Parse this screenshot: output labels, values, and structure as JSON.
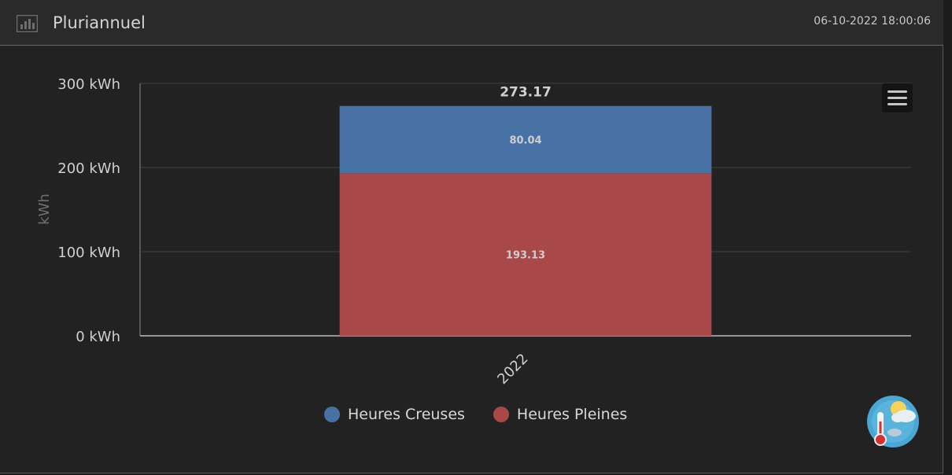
{
  "header": {
    "title": "Pluriannuel",
    "timestamp": "06-10-2022 18:00:06",
    "icon": "bar-chart-icon"
  },
  "menu": {
    "icon": "hamburger-menu-icon"
  },
  "weather_widget": {
    "icon": "weather-thermometer-icon"
  },
  "colors": {
    "background": "#222222",
    "header": "#2a2a2a",
    "heures_creuses": "#4872a6",
    "heures_pleines": "#a84848",
    "grid": "#3e3e3e",
    "text": "#d8d8d8"
  },
  "chart_data": {
    "type": "bar",
    "stacked": true,
    "categories": [
      "2022"
    ],
    "series": [
      {
        "name": "Heures Creuses",
        "values": [
          80.04
        ],
        "color": "#4872a6"
      },
      {
        "name": "Heures Pleines",
        "values": [
          193.13
        ],
        "color": "#a84848"
      }
    ],
    "totals": [
      273.17
    ],
    "ylabel": "kWh",
    "ylim": [
      0,
      300
    ],
    "yticks": [
      0,
      100,
      200,
      300
    ],
    "ytick_labels": [
      "0 kWh",
      "100 kWh",
      "200 kWh",
      "300 kWh"
    ],
    "grid": true,
    "legend_position": "bottom"
  }
}
